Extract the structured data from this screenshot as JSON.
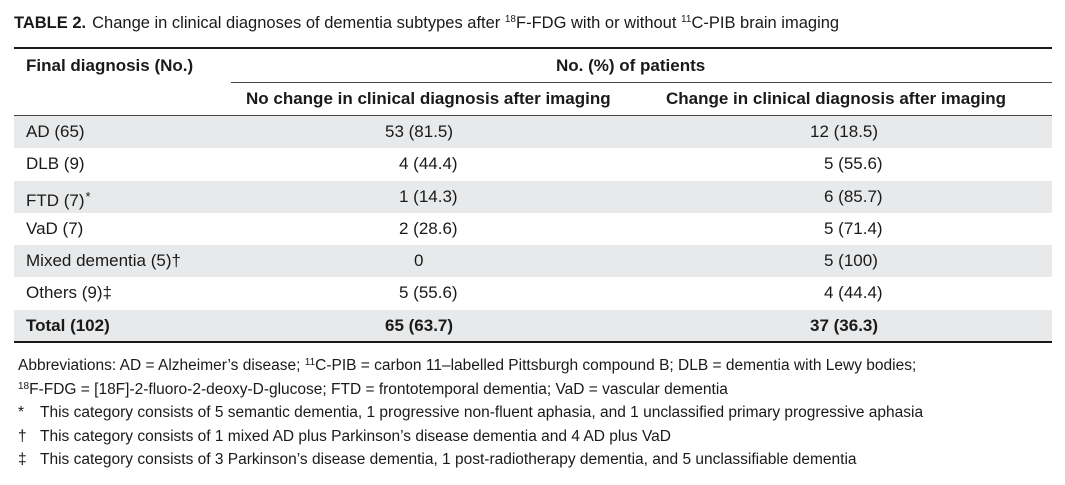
{
  "table": {
    "label": "TABLE 2.",
    "title_parts": [
      "Change in clinical diagnoses of dementia subtypes after ",
      "18",
      "F-FDG with or without ",
      "11",
      "C-PIB brain imaging"
    ],
    "col_header_1": "Final diagnosis (No.)",
    "group_header": "No. (%) of patients",
    "col_header_2": "No change in clinical diagnosis after imaging",
    "col_header_3": "Change in clinical diagnosis after imaging",
    "rows": [
      {
        "diagnosis": "AD (65)",
        "symbol": "",
        "no_change": "53 (81.5)",
        "change": "12 (18.5)"
      },
      {
        "diagnosis": "DLB (9)",
        "symbol": "",
        "no_change": "4 (44.4)",
        "change": "5 (55.6)"
      },
      {
        "diagnosis": "FTD (7)",
        "symbol": "*",
        "no_change": "1 (14.3)",
        "change": "6 (85.7)"
      },
      {
        "diagnosis": "VaD (7)",
        "symbol": "",
        "no_change": "2 (28.6)",
        "change": "5 (71.4)"
      },
      {
        "diagnosis": "Mixed dementia (5)†",
        "symbol": "",
        "no_change": "0",
        "change": "5 (100)"
      },
      {
        "diagnosis": "Others (9)‡",
        "symbol": "",
        "no_change": "5 (55.6)",
        "change": "4 (44.4)"
      }
    ],
    "total": {
      "diagnosis": "Total (102)",
      "no_change": "65 (63.7)",
      "change": "37 (36.3)"
    }
  },
  "notes": {
    "abbrev_line1_parts": [
      "Abbreviations: AD = Alzheimer’s disease; ",
      "11",
      "C-PIB = carbon 11–labelled Pittsburgh compound B; DLB = dementia with Lewy bodies;"
    ],
    "abbrev_line2_parts": [
      "18",
      "F-FDG = [18F]-2-fluoro-2-deoxy-D-glucose; FTD = frontotemporal dementia; VaD = vascular dementia"
    ],
    "footnotes": [
      {
        "mark": "*",
        "text": "This category consists of 5 semantic dementia, 1 progressive non-fluent aphasia, and 1 unclassified primary progressive aphasia"
      },
      {
        "mark": "†",
        "text": "This category consists of 1 mixed AD plus Parkinson’s disease dementia and 4 AD plus VaD"
      },
      {
        "mark": "‡",
        "text": "This category consists of 3 Parkinson’s disease dementia, 1 post-radiotherapy dementia, and 5 unclassifiable dementia"
      }
    ]
  }
}
